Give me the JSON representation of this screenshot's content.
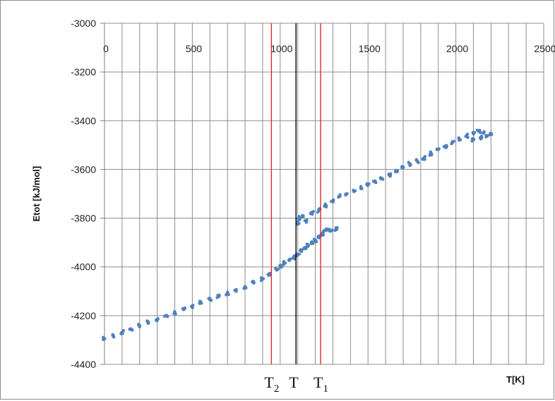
{
  "chart_data": {
    "type": "scatter",
    "title": "",
    "xlabel": "T[K]",
    "ylabel": "Etot [kJ/mol]",
    "xlim": [
      0,
      2500
    ],
    "ylim": [
      -4400,
      -3000
    ],
    "x_ticks": [
      "0",
      "500",
      "1000",
      "1500",
      "2000",
      "2500"
    ],
    "y_ticks": [
      "-3000",
      "-3200",
      "-3400",
      "-3600",
      "-3800",
      "-4000",
      "-4200",
      "-4400"
    ],
    "grid": true,
    "point_color": "#4f81bd",
    "series": [
      {
        "points": [
          [
            0,
            -4295
          ],
          [
            50,
            -4282
          ],
          [
            100,
            -4268
          ],
          [
            150,
            -4255
          ],
          [
            200,
            -4242
          ],
          [
            250,
            -4228
          ],
          [
            300,
            -4215
          ],
          [
            350,
            -4201
          ],
          [
            400,
            -4188
          ],
          [
            450,
            -4175
          ],
          [
            500,
            -4161
          ],
          [
            550,
            -4148
          ],
          [
            600,
            -4134
          ],
          [
            650,
            -4121
          ],
          [
            700,
            -4108
          ],
          [
            750,
            -4094
          ],
          [
            800,
            -4081
          ],
          [
            850,
            -4065
          ],
          [
            900,
            -4050
          ],
          [
            940,
            -4032
          ],
          [
            980,
            -4012
          ],
          [
            1000,
            -4000
          ],
          [
            1020,
            -3985
          ],
          [
            1050,
            -3972
          ],
          [
            1080,
            -3962
          ],
          [
            1100,
            -3948
          ],
          [
            1120,
            -3935
          ],
          [
            1140,
            -3921
          ],
          [
            1160,
            -3910
          ],
          [
            1180,
            -3898
          ],
          [
            1200,
            -3890
          ],
          [
            1220,
            -3880
          ],
          [
            1240,
            -3868
          ],
          [
            1250,
            -3852
          ],
          [
            1270,
            -3847
          ],
          [
            1290,
            -3852
          ],
          [
            1320,
            -3845
          ],
          [
            1100,
            -3820
          ],
          [
            1110,
            -3800
          ],
          [
            1130,
            -3790
          ],
          [
            1150,
            -3810
          ],
          [
            1180,
            -3778
          ],
          [
            1220,
            -3768
          ],
          [
            1260,
            -3748
          ],
          [
            1300,
            -3728
          ],
          [
            1340,
            -3710
          ],
          [
            1380,
            -3700
          ],
          [
            1420,
            -3690
          ],
          [
            1460,
            -3675
          ],
          [
            1500,
            -3662
          ],
          [
            1540,
            -3648
          ],
          [
            1580,
            -3638
          ],
          [
            1620,
            -3622
          ],
          [
            1660,
            -3608
          ],
          [
            1700,
            -3592
          ],
          [
            1740,
            -3578
          ],
          [
            1780,
            -3566
          ],
          [
            1820,
            -3552
          ],
          [
            1860,
            -3535
          ],
          [
            1900,
            -3518
          ],
          [
            1940,
            -3504
          ],
          [
            1980,
            -3490
          ],
          [
            2020,
            -3476
          ],
          [
            2060,
            -3462
          ],
          [
            2100,
            -3452
          ],
          [
            2130,
            -3443
          ],
          [
            2160,
            -3446
          ],
          [
            2200,
            -3452
          ],
          [
            2180,
            -3462
          ],
          [
            2140,
            -3470
          ],
          [
            2100,
            -3478
          ]
        ]
      }
    ],
    "vlines": [
      {
        "label": "T",
        "subscript": "2",
        "x": 950,
        "color": "#dd2a2a"
      },
      {
        "label": "T",
        "subscript": "",
        "x": 1090,
        "color": "#000000"
      },
      {
        "label": "T",
        "subscript": "1",
        "x": 1230,
        "color": "#dd2a2a"
      }
    ]
  }
}
